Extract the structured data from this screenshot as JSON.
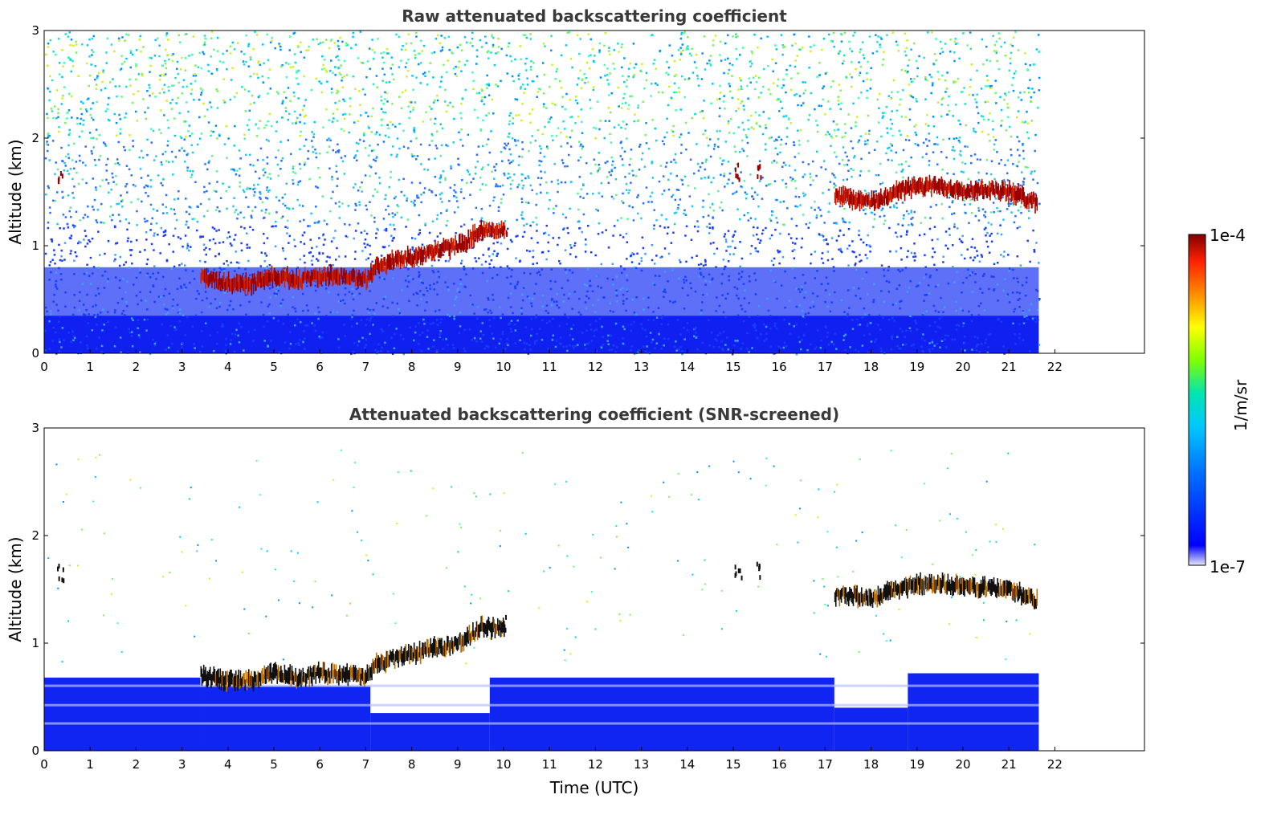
{
  "chart_data": [
    {
      "type": "heatmap",
      "title": "Raw attenuated backscattering coefficient",
      "xlabel": "",
      "ylabel": "Altitude (km)",
      "xlim": [
        0,
        24
      ],
      "ylim": [
        0,
        3
      ],
      "xticks": [
        "0",
        "1",
        "2",
        "3",
        "4",
        "5",
        "6",
        "7",
        "8",
        "9",
        "10",
        "11",
        "12",
        "13",
        "14",
        "15",
        "16",
        "17",
        "18",
        "19",
        "20",
        "21",
        "22"
      ],
      "yticks": [
        "0",
        "1",
        "2",
        "3"
      ],
      "data_end_time": 21.65,
      "cloud_layer": {
        "time": [
          3.4,
          4.0,
          4.5,
          5.0,
          5.5,
          6.0,
          6.5,
          7.0,
          7.2,
          7.5,
          8.0,
          8.5,
          9.0,
          9.2,
          9.5,
          10.0,
          17.2,
          17.5,
          18.0,
          18.5,
          19.0,
          19.5,
          20.0,
          20.5,
          21.0,
          21.6
        ],
        "altitude_km": [
          0.7,
          0.65,
          0.65,
          0.72,
          0.68,
          0.72,
          0.72,
          0.68,
          0.8,
          0.85,
          0.9,
          0.95,
          1.0,
          1.05,
          1.15,
          1.15,
          1.45,
          1.45,
          1.4,
          1.5,
          1.55,
          1.55,
          1.52,
          1.52,
          1.5,
          1.4
        ]
      },
      "sparse_features": [
        {
          "time": 0.35,
          "altitude_km": 1.67
        },
        {
          "time": 15.1,
          "altitude_km": 1.7
        },
        {
          "time": 15.55,
          "altitude_km": 1.7
        },
        {
          "time": 10.0,
          "altitude_km": 1.2
        }
      ],
      "grid": false
    },
    {
      "type": "heatmap",
      "title": "Attenuated backscattering coefficient (SNR-screened)",
      "xlabel": "Time (UTC)",
      "ylabel": "Altitude (km)",
      "xlim": [
        0,
        24
      ],
      "ylim": [
        0,
        3
      ],
      "xticks": [
        "0",
        "1",
        "2",
        "3",
        "4",
        "5",
        "6",
        "7",
        "8",
        "9",
        "10",
        "11",
        "12",
        "13",
        "14",
        "15",
        "16",
        "17",
        "18",
        "19",
        "20",
        "21",
        "22"
      ],
      "yticks": [
        "0",
        "1",
        "2",
        "3"
      ],
      "data_end_time": 21.65,
      "boundary_layer_top_km": [
        {
          "from": 0,
          "to": 3.4,
          "top": 0.68
        },
        {
          "from": 3.4,
          "to": 7.1,
          "top": 0.6
        },
        {
          "from": 7.1,
          "to": 9.7,
          "top": 0.35
        },
        {
          "from": 9.7,
          "to": 17.2,
          "top": 0.68
        },
        {
          "from": 17.2,
          "to": 18.8,
          "top": 0.4
        },
        {
          "from": 18.8,
          "to": 21.65,
          "top": 0.72
        }
      ],
      "grid": false
    }
  ],
  "colorbar": {
    "label": "1/m/sr",
    "min_label": "1e-7",
    "max_label": "1e-4",
    "colormap": "jet",
    "colors": [
      "#e8e8f8",
      "#0000ff",
      "#00bfff",
      "#00e5b0",
      "#7fff00",
      "#ffff00",
      "#ff8c00",
      "#ff2000",
      "#800000"
    ]
  }
}
